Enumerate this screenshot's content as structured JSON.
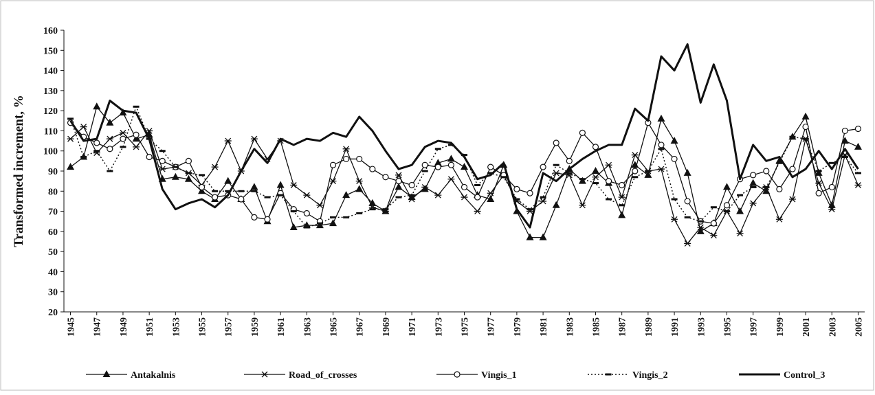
{
  "chart_data": {
    "type": "line",
    "y_label": "Transformed increment, %",
    "x": [
      1945,
      1946,
      1947,
      1948,
      1949,
      1950,
      1951,
      1952,
      1953,
      1954,
      1955,
      1956,
      1957,
      1958,
      1959,
      1960,
      1961,
      1962,
      1963,
      1964,
      1965,
      1966,
      1967,
      1968,
      1969,
      1970,
      1971,
      1972,
      1973,
      1974,
      1975,
      1976,
      1977,
      1978,
      1979,
      1980,
      1981,
      1982,
      1983,
      1984,
      1985,
      1986,
      1987,
      1988,
      1989,
      1990,
      1991,
      1992,
      1993,
      1994,
      1995,
      1996,
      1997,
      1998,
      1999,
      2000,
      2001,
      2002,
      2003,
      2004,
      2005
    ],
    "xlim": [
      1944.5,
      2005.5
    ],
    "xticks": [
      1945,
      1947,
      1949,
      1951,
      1953,
      1955,
      1957,
      1959,
      1961,
      1963,
      1965,
      1967,
      1969,
      1971,
      1973,
      1975,
      1977,
      1979,
      1981,
      1983,
      1985,
      1987,
      1989,
      1991,
      1993,
      1995,
      1997,
      1999,
      2001,
      2003,
      2005
    ],
    "ylim": [
      20,
      160
    ],
    "yticks": [
      20,
      30,
      40,
      50,
      60,
      70,
      80,
      90,
      100,
      110,
      120,
      130,
      140,
      150,
      160
    ],
    "grid": false,
    "legend": "bottom",
    "series": [
      {
        "name": "Antakalnis",
        "color": "#111111",
        "marker": "triangle",
        "line_style": "solid",
        "values": [
          92,
          97,
          122,
          114,
          119,
          106,
          108,
          86,
          87,
          86,
          80,
          76,
          85,
          76,
          82,
          65,
          83,
          62,
          63,
          63,
          64,
          78,
          81,
          74,
          70,
          82,
          77,
          81,
          94,
          96,
          92,
          78,
          76,
          93,
          70,
          57,
          57,
          73,
          91,
          85,
          90,
          84,
          68,
          93,
          88,
          116,
          105,
          89,
          60,
          64,
          82,
          70,
          84,
          80,
          95,
          107,
          117,
          89,
          73,
          105,
          102
        ]
      },
      {
        "name": "Road_of_crosses",
        "color": "#111111",
        "marker": "star",
        "line_style": "solid",
        "values": [
          106,
          112,
          99,
          106,
          109,
          102,
          110,
          91,
          92,
          89,
          83,
          92,
          105,
          90,
          106,
          96,
          105,
          83,
          78,
          73,
          85,
          101,
          85,
          72,
          70,
          88,
          76,
          82,
          78,
          86,
          77,
          70,
          79,
          88,
          75,
          70,
          75,
          89,
          88,
          73,
          87,
          93,
          77,
          98,
          90,
          91,
          66,
          54,
          62,
          58,
          70,
          59,
          74,
          82,
          66,
          76,
          106,
          84,
          71,
          98,
          83
        ]
      },
      {
        "name": "Vingis_1",
        "color": "#111111",
        "marker": "circle",
        "line_style": "solid",
        "values": [
          114,
          107,
          104,
          101,
          106,
          108,
          97,
          95,
          92,
          95,
          82,
          77,
          78,
          76,
          67,
          66,
          79,
          71,
          69,
          65,
          93,
          96,
          96,
          91,
          87,
          85,
          83,
          93,
          92,
          93,
          82,
          77,
          92,
          88,
          81,
          79,
          92,
          104,
          95,
          109,
          102,
          85,
          83,
          90,
          114,
          103,
          96,
          75,
          65,
          64,
          73,
          86,
          88,
          90,
          81,
          91,
          112,
          79,
          82,
          110,
          111
        ]
      },
      {
        "name": "Vingis_2",
        "color": "#111111",
        "marker": "dash",
        "line_style": "dotted",
        "values": [
          116,
          97,
          100,
          90,
          102,
          122,
          106,
          100,
          92,
          89,
          88,
          80,
          80,
          80,
          80,
          77,
          78,
          70,
          62,
          64,
          67,
          67,
          69,
          71,
          71,
          77,
          78,
          90,
          101,
          103,
          98,
          83,
          89,
          87,
          76,
          71,
          77,
          93,
          89,
          86,
          84,
          76,
          73,
          87,
          90,
          101,
          76,
          67,
          65,
          72,
          70,
          78,
          82,
          82,
          94,
          107,
          106,
          90,
          94,
          97,
          89
        ]
      },
      {
        "name": "Control_3",
        "color": "#111111",
        "marker": "none",
        "line_style": "bold",
        "values": [
          115,
          105,
          106,
          125,
          120,
          119,
          106,
          81,
          71,
          74,
          76,
          72,
          78,
          90,
          101,
          94,
          106,
          103,
          106,
          105,
          109,
          107,
          117,
          110,
          100,
          91,
          93,
          102,
          105,
          104,
          97,
          86,
          88,
          94,
          71,
          62,
          89,
          85,
          91,
          96,
          100,
          103,
          103,
          121,
          115,
          147,
          140,
          153,
          124,
          143,
          125,
          86,
          103,
          95,
          97,
          87,
          91,
          100,
          91,
          101,
          91
        ]
      }
    ]
  }
}
